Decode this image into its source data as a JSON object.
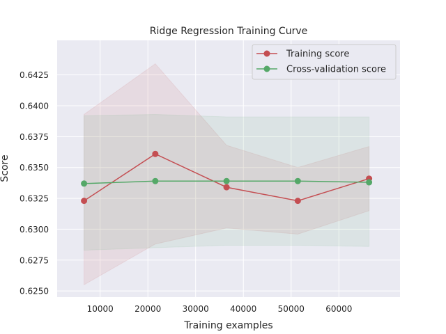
{
  "chart_data": {
    "type": "line",
    "title": "Ridge Regression Training Curve",
    "xlabel": "Training examples",
    "ylabel": "Score",
    "xlim": [
      1000,
      72800
    ],
    "ylim": [
      0.6245,
      0.6453
    ],
    "x_ticks": [
      10000,
      20000,
      30000,
      40000,
      50000,
      60000
    ],
    "y_ticks": [
      0.625,
      0.6275,
      0.63,
      0.6325,
      0.635,
      0.6375,
      0.64,
      0.6425
    ],
    "x_tick_labels": [
      "10000",
      "20000",
      "30000",
      "40000",
      "50000",
      "60000"
    ],
    "y_tick_labels": [
      "0.6250",
      "0.6275",
      "0.6300",
      "0.6325",
      "0.6350",
      "0.6375",
      "0.6400",
      "0.6425"
    ],
    "grid": true,
    "legend_position": "top-right",
    "x": [
      6632,
      21554,
      36476,
      51398,
      66320
    ],
    "series": [
      {
        "name": "Training score",
        "color": "#c44e52",
        "values": [
          0.6323,
          0.6361,
          0.6334,
          0.6323,
          0.6341
        ],
        "lower": [
          0.6255,
          0.6288,
          0.6301,
          0.6296,
          0.6315
        ],
        "upper": [
          0.6393,
          0.6434,
          0.6368,
          0.635,
          0.6367
        ]
      },
      {
        "name": "Cross-validation score",
        "color": "#55a868",
        "values": [
          0.6337,
          0.6339,
          0.6339,
          0.6339,
          0.6338
        ],
        "lower": [
          0.6283,
          0.6285,
          0.6287,
          0.6287,
          0.6286
        ],
        "upper": [
          0.6392,
          0.6393,
          0.6391,
          0.6391,
          0.6391
        ]
      }
    ]
  }
}
